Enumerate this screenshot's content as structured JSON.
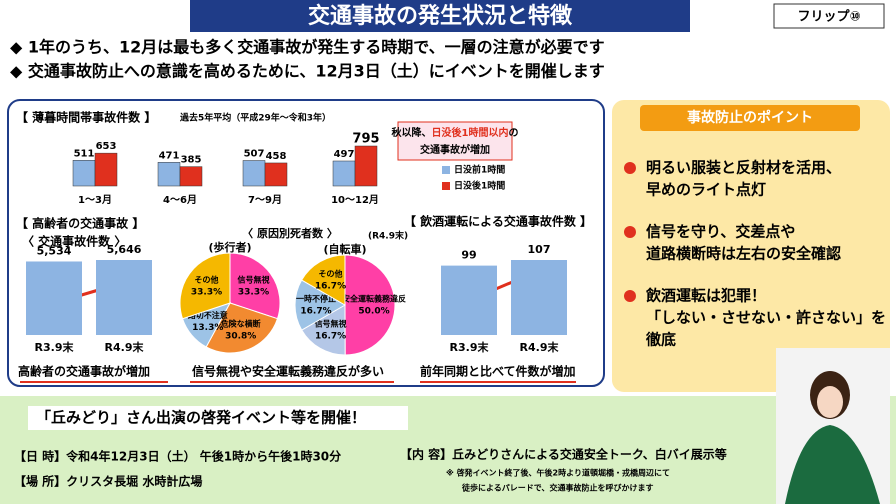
{
  "header": {
    "title": "交通事故の発生状況と特徴",
    "flip": "フリップ⑩"
  },
  "bullets": [
    "◆ 1年のうち、12月は最も多く交通事故が発生する時期で、一層の注意が必要です",
    "◆ 交通事故防止への意識を高めるために、12月3日（土）にイベントを開催します"
  ],
  "chart_data": [
    {
      "type": "bar",
      "title": "【 薄暮時間帯事故件数 】",
      "subtitle": "過去5年平均（平成29年～令和3年）",
      "categories": [
        "1～3月",
        "4～6月",
        "7～9月",
        "10～12月"
      ],
      "series": [
        {
          "name": "日没前1時間",
          "color": "#8db4e2",
          "values": [
            511,
            471,
            507,
            497
          ]
        },
        {
          "name": "日没後1時間",
          "color": "#e0301e",
          "values": [
            653,
            385,
            458,
            795
          ]
        }
      ],
      "annotation": [
        "秋以降、",
        "日没後1時間以内",
        "の",
        "交通事故が増加"
      ]
    },
    {
      "type": "bar",
      "title": "【 高齢者の交通事故 】",
      "subtitle": "〈 交通事故件数 〉",
      "categories": [
        "R3.9末",
        "R4.9末"
      ],
      "values": [
        5534,
        5646
      ],
      "value_labels": [
        "5,534",
        "5,646"
      ],
      "color": "#8db4e2",
      "caption": "高齢者の交通事故が増加"
    },
    {
      "type": "pie",
      "title": "〈 原因別死者数 〉",
      "date": "(R4.9末)",
      "subtitle": "(歩行者)",
      "categories": [
        "信号無視",
        "危険な横断",
        "路切不注意",
        "その他"
      ],
      "values": [
        33.3,
        30.8,
        13.3,
        33.3
      ],
      "value_labels": [
        "33.3%",
        "30.8%",
        "13.3%",
        "33.3%"
      ],
      "colors": [
        "#ff3fa6",
        "#f28a30",
        "#9dc3e6",
        "#f5b800"
      ],
      "caption": "信号無視や安全運転義務違反が多い"
    },
    {
      "type": "pie",
      "subtitle": "(自転車)",
      "categories": [
        "安全運転義務違反",
        "信号無視",
        "一時不停止",
        "その他"
      ],
      "values": [
        50.0,
        16.7,
        16.7,
        16.7
      ],
      "value_labels": [
        "50.0%",
        "16.7%",
        "16.7%",
        "16.7%"
      ],
      "colors": [
        "#ff3fa6",
        "#b4c7e7",
        "#9dc3e6",
        "#f5b800"
      ]
    },
    {
      "type": "bar",
      "title": "【 飲酒運転による交通事故件数 】",
      "categories": [
        "R3.9末",
        "R4.9末"
      ],
      "values": [
        99,
        107
      ],
      "color": "#8db4e2",
      "caption": "前年同期と比べて件数が増加"
    }
  ],
  "points": {
    "title": "事故防止のポイント",
    "items": [
      [
        "明るい服装と反射材を活用、",
        "早めのライト点灯"
      ],
      [
        "信号を守り、交差点や",
        "道路横断時は左右の安全確認"
      ],
      [
        "飲酒運転は犯罪！",
        "「しない・させない・許さない」を",
        "徹底"
      ]
    ]
  },
  "event": {
    "title": "「丘みどり」さん出演の啓発イベント等を開催！",
    "date": "【日 時】令和4年12月3日（土） 午後1時から午後1時30分",
    "place": "【場 所】クリスタ長堀 水時計広場",
    "content": "【内 容】丘みどりさんによる交通安全トーク、白バイ展示等",
    "notes": [
      "※ 啓発イベント終了後、午後2時より道頓堀橋・戎橋周辺にて",
      "徒歩によるパレードで、交通事故防止を呼びかけます"
    ]
  }
}
